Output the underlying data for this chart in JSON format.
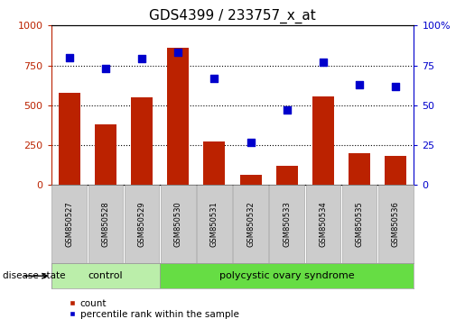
{
  "title": "GDS4399 / 233757_x_at",
  "samples": [
    "GSM850527",
    "GSM850528",
    "GSM850529",
    "GSM850530",
    "GSM850531",
    "GSM850532",
    "GSM850533",
    "GSM850534",
    "GSM850535",
    "GSM850536"
  ],
  "counts": [
    580,
    380,
    550,
    860,
    275,
    65,
    120,
    555,
    200,
    185
  ],
  "percentiles": [
    80,
    73,
    79,
    83,
    67,
    27,
    47,
    77,
    63,
    62
  ],
  "left_ylim": [
    0,
    1000
  ],
  "right_ylim": [
    0,
    100
  ],
  "left_yticks": [
    0,
    250,
    500,
    750,
    1000
  ],
  "right_yticks": [
    0,
    25,
    50,
    75,
    100
  ],
  "bar_color": "#bb2200",
  "scatter_color": "#0000cc",
  "grid_color": "#000000",
  "n_control": 3,
  "n_disease": 7,
  "control_label": "control",
  "disease_label": "polycystic ovary syndrome",
  "disease_state_label": "disease state",
  "legend_count": "count",
  "legend_percentile": "percentile rank within the sample",
  "bg_xtick": "#cccccc",
  "bg_control": "#bbeeaa",
  "bg_disease": "#66dd44",
  "title_fontsize": 11,
  "tick_fontsize": 8,
  "bar_width": 0.6,
  "scatter_size": 40
}
